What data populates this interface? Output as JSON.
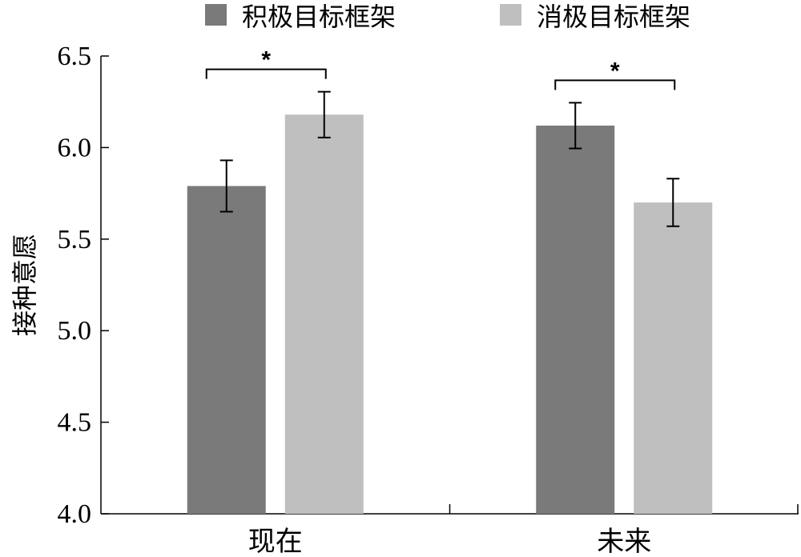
{
  "chart_data": {
    "type": "bar",
    "title": "",
    "xlabel": "",
    "ylabel": "接种意愿",
    "ylim": [
      4.0,
      6.5
    ],
    "yticks": [
      "4.0",
      "4.5",
      "5.0",
      "5.5",
      "6.0",
      "6.5"
    ],
    "categories": [
      "现在",
      "未来"
    ],
    "series": [
      {
        "name": "积极目标框架",
        "color": "#7a7a7a",
        "values": [
          5.79,
          6.12
        ],
        "errors": [
          0.14,
          0.125
        ]
      },
      {
        "name": "消极目标框架",
        "color": "#bfbfbf",
        "values": [
          6.18,
          5.7
        ],
        "errors": [
          0.125,
          0.13
        ]
      }
    ],
    "significance": [
      {
        "category_index": 0,
        "label": "*"
      },
      {
        "category_index": 1,
        "label": "*"
      }
    ],
    "legend_position": "top",
    "grid": false
  }
}
